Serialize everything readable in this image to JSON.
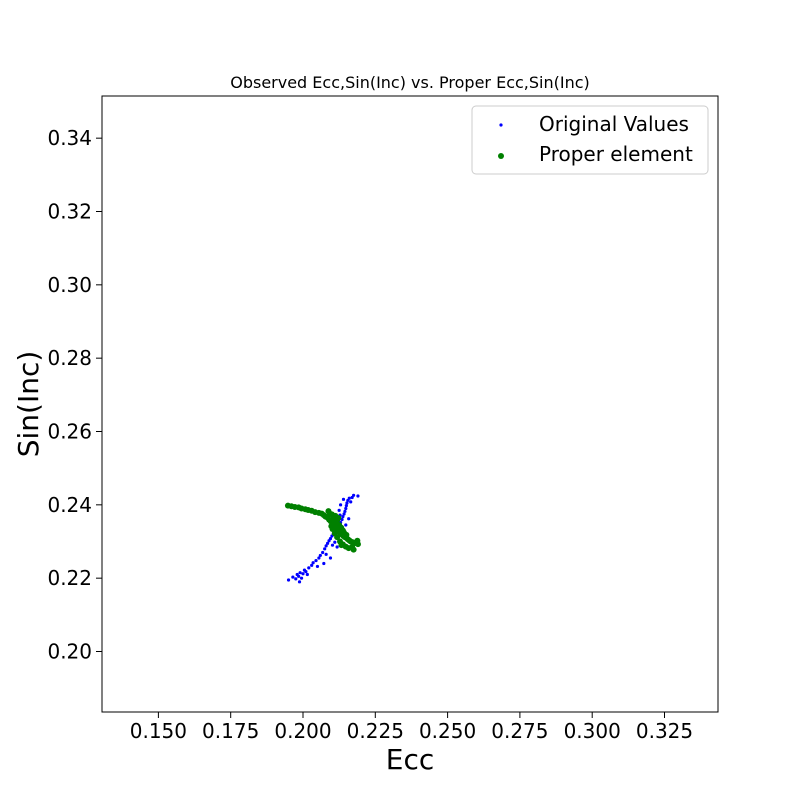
{
  "chart_data": {
    "type": "scatter",
    "title": "Observed Ecc,Sin(Inc) vs. Proper Ecc,Sin(Inc)",
    "xlabel": "Ecc",
    "ylabel": "Sin(Inc)",
    "xlim": [
      0.1305,
      0.3435
    ],
    "ylim": [
      0.1835,
      0.3515
    ],
    "xticks": [
      "0.150",
      "0.175",
      "0.200",
      "0.225",
      "0.250",
      "0.275",
      "0.300",
      "0.325"
    ],
    "yticks": [
      "0.20",
      "0.22",
      "0.24",
      "0.26",
      "0.28",
      "0.30",
      "0.32",
      "0.34"
    ],
    "grid": false,
    "legend_position": "upper right",
    "series": [
      {
        "name": "Original Values",
        "color": "#0000ff",
        "marker": "small-dot",
        "points": [
          [
            0.195,
            0.2195
          ],
          [
            0.1965,
            0.2203
          ],
          [
            0.1975,
            0.2198
          ],
          [
            0.198,
            0.221
          ],
          [
            0.1985,
            0.2205
          ],
          [
            0.199,
            0.2215
          ],
          [
            0.1995,
            0.22
          ],
          [
            0.2,
            0.2212
          ],
          [
            0.2005,
            0.2222
          ],
          [
            0.201,
            0.2218
          ],
          [
            0.202,
            0.2228
          ],
          [
            0.203,
            0.2235
          ],
          [
            0.2035,
            0.2242
          ],
          [
            0.2045,
            0.2248
          ],
          [
            0.2055,
            0.2255
          ],
          [
            0.206,
            0.2262
          ],
          [
            0.2068,
            0.227
          ],
          [
            0.2075,
            0.228
          ],
          [
            0.208,
            0.2288
          ],
          [
            0.2085,
            0.2295
          ],
          [
            0.209,
            0.2302
          ],
          [
            0.2095,
            0.2308
          ],
          [
            0.21,
            0.2315
          ],
          [
            0.2105,
            0.2322
          ],
          [
            0.211,
            0.2298
          ],
          [
            0.2118,
            0.2285
          ],
          [
            0.2112,
            0.233
          ],
          [
            0.212,
            0.2338
          ],
          [
            0.2125,
            0.2345
          ],
          [
            0.213,
            0.2352
          ],
          [
            0.2135,
            0.236
          ],
          [
            0.2138,
            0.2368
          ],
          [
            0.2142,
            0.2375
          ],
          [
            0.2145,
            0.2382
          ],
          [
            0.2148,
            0.239
          ],
          [
            0.215,
            0.2398
          ],
          [
            0.2152,
            0.2405
          ],
          [
            0.2155,
            0.2412
          ],
          [
            0.216,
            0.2418
          ],
          [
            0.2165,
            0.2408
          ],
          [
            0.217,
            0.242
          ],
          [
            0.2175,
            0.2426
          ],
          [
            0.219,
            0.2424
          ],
          [
            0.214,
            0.2415
          ],
          [
            0.213,
            0.24
          ],
          [
            0.2125,
            0.2385
          ],
          [
            0.2158,
            0.2362
          ],
          [
            0.2148,
            0.2345
          ],
          [
            0.2095,
            0.2255
          ],
          [
            0.208,
            0.2265
          ],
          [
            0.2072,
            0.224
          ],
          [
            0.205,
            0.2232
          ],
          [
            0.2015,
            0.221
          ],
          [
            0.1988,
            0.219
          ],
          [
            0.2102,
            0.229
          ],
          [
            0.2128,
            0.2372
          ]
        ]
      },
      {
        "name": "Proper element",
        "color": "#008000",
        "marker": "dot",
        "points": [
          [
            0.1948,
            0.2398
          ],
          [
            0.196,
            0.2396
          ],
          [
            0.1972,
            0.2394
          ],
          [
            0.1985,
            0.2393
          ],
          [
            0.1995,
            0.239
          ],
          [
            0.2008,
            0.2388
          ],
          [
            0.2018,
            0.2386
          ],
          [
            0.203,
            0.2384
          ],
          [
            0.2042,
            0.238
          ],
          [
            0.2055,
            0.2378
          ],
          [
            0.2065,
            0.2376
          ],
          [
            0.2072,
            0.2372
          ],
          [
            0.2078,
            0.2368
          ],
          [
            0.2085,
            0.2365
          ],
          [
            0.209,
            0.236
          ],
          [
            0.2095,
            0.2356
          ],
          [
            0.21,
            0.2352
          ],
          [
            0.2105,
            0.2348
          ],
          [
            0.2108,
            0.2344
          ],
          [
            0.2112,
            0.234
          ],
          [
            0.2116,
            0.2336
          ],
          [
            0.212,
            0.2332
          ],
          [
            0.2124,
            0.2328
          ],
          [
            0.2128,
            0.2325
          ],
          [
            0.2132,
            0.2322
          ],
          [
            0.2136,
            0.2318
          ],
          [
            0.214,
            0.2315
          ],
          [
            0.2145,
            0.2312
          ],
          [
            0.215,
            0.231
          ],
          [
            0.2155,
            0.2306
          ],
          [
            0.216,
            0.2303
          ],
          [
            0.2165,
            0.23
          ],
          [
            0.2172,
            0.2298
          ],
          [
            0.218,
            0.2296
          ],
          [
            0.219,
            0.2293
          ],
          [
            0.2188,
            0.2302
          ],
          [
            0.217,
            0.2285
          ],
          [
            0.2158,
            0.2282
          ],
          [
            0.2148,
            0.2286
          ],
          [
            0.2138,
            0.2292
          ],
          [
            0.2128,
            0.23
          ],
          [
            0.2118,
            0.2312
          ],
          [
            0.211,
            0.2322
          ],
          [
            0.2102,
            0.2334
          ],
          [
            0.2098,
            0.2342
          ],
          [
            0.2105,
            0.2362
          ],
          [
            0.2112,
            0.237
          ],
          [
            0.2118,
            0.2358
          ],
          [
            0.2125,
            0.2345
          ],
          [
            0.2132,
            0.2338
          ],
          [
            0.2138,
            0.233
          ],
          [
            0.2142,
            0.2324
          ],
          [
            0.215,
            0.2318
          ],
          [
            0.2093,
            0.2376
          ],
          [
            0.2088,
            0.2383
          ],
          [
            0.21,
            0.2374
          ],
          [
            0.2175,
            0.2278
          ],
          [
            0.2133,
            0.229
          ],
          [
            0.2115,
            0.2352
          ],
          [
            0.2122,
            0.2364
          ]
        ]
      }
    ]
  }
}
